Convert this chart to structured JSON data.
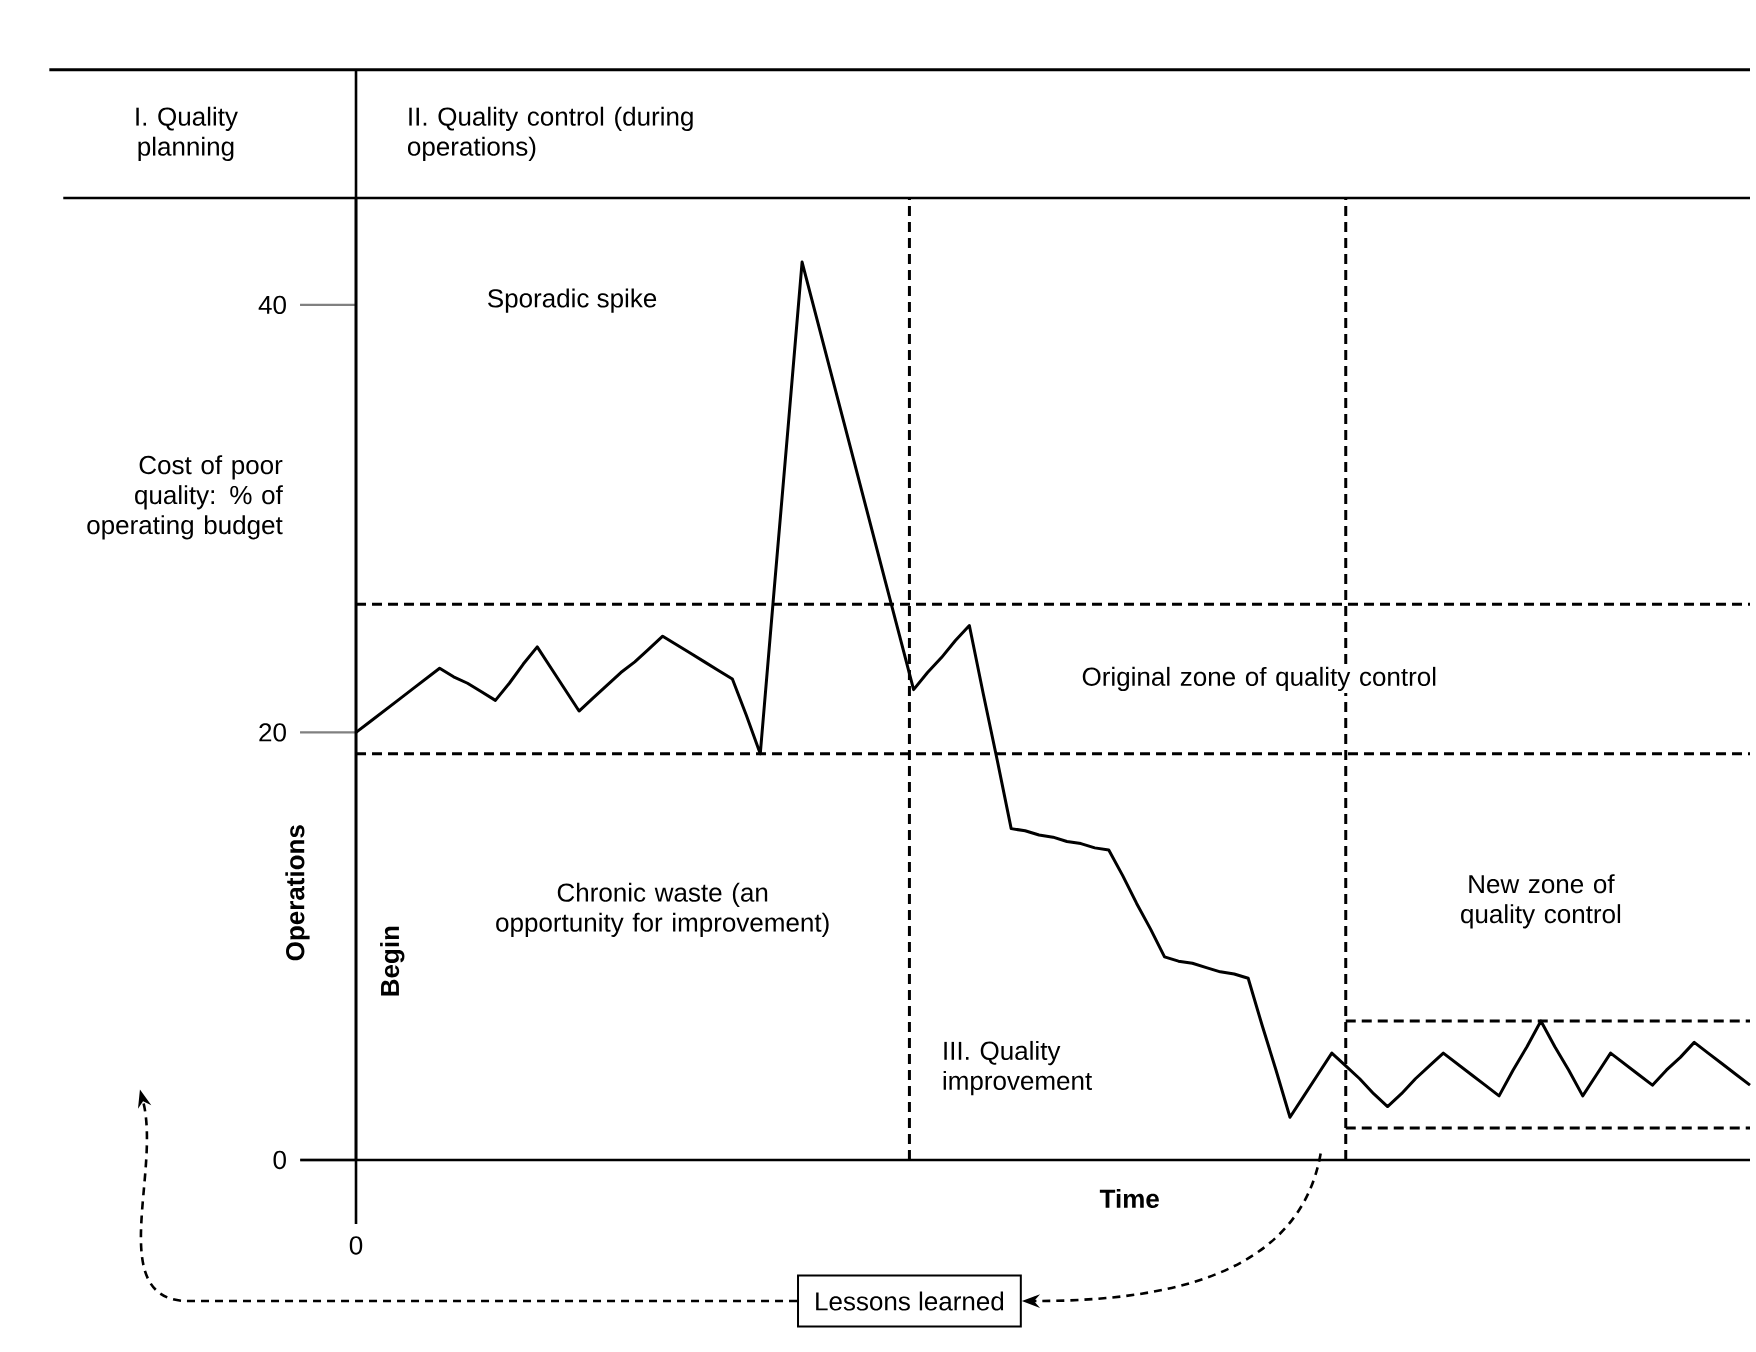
{
  "chart_data": {
    "type": "line",
    "xlabel": "Time",
    "ylabel": "Cost of poor quality: % of operating budget",
    "categories": [
      null,
      null,
      null,
      null,
      null,
      null,
      null,
      null,
      null,
      null,
      null,
      null,
      null,
      null,
      null,
      null,
      null,
      null,
      null,
      null,
      null,
      null,
      null,
      null,
      null,
      null,
      null,
      null,
      null,
      null,
      null,
      null,
      null,
      null,
      null,
      null,
      null,
      null,
      null,
      null,
      null,
      null,
      null,
      null,
      null,
      null,
      null,
      null,
      null,
      null,
      null,
      null,
      null,
      null,
      null,
      null,
      null,
      null,
      null,
      null,
      null,
      null,
      null,
      null,
      null,
      null,
      null,
      null,
      null,
      null,
      null,
      null,
      null,
      null,
      null,
      null,
      null,
      null,
      null,
      null,
      null,
      null,
      null,
      null,
      null,
      null,
      null,
      null,
      null,
      null,
      null,
      null,
      null,
      null,
      null,
      null,
      null,
      null,
      null,
      null,
      null
    ],
    "ylim": [
      0,
      45
    ],
    "yticks": [
      {
        "value": 0,
        "label": "0"
      },
      {
        "value": 20,
        "label": "20"
      },
      {
        "value": 40,
        "label": "40"
      }
    ],
    "series": [
      {
        "color": "#000000",
        "values": [
          20,
          20.5,
          21,
          21.5,
          22,
          22.5,
          23,
          22.6,
          22.3,
          21.9,
          21.5,
          22.3,
          23.2,
          24,
          23,
          22,
          21,
          21.6,
          22.2,
          22.8,
          23.3,
          23.9,
          24.5,
          24.1,
          23.7,
          23.3,
          22.9,
          22.5,
          20.8,
          19,
          26.7,
          34.3,
          42,
          39.5,
          37,
          34.5,
          32,
          29.5,
          27,
          24.5,
          22,
          22.8,
          23.5,
          24.3,
          25,
          21.8,
          18.7,
          15.5,
          15.4,
          15.2,
          15.1,
          14.9,
          14.8,
          14.6,
          14.5,
          13.3,
          12,
          10.8,
          9.5,
          9.3,
          9.2,
          9,
          8.8,
          8.7,
          8.5,
          6.3,
          4.2,
          2,
          3,
          4,
          5,
          4.4,
          3.8,
          3.1,
          2.5,
          3.1,
          3.8,
          4.4,
          5,
          4.5,
          4,
          3.5,
          3,
          4.2,
          5.3,
          6.5,
          5.3,
          4.2,
          3,
          4,
          5,
          4.5,
          4,
          3.5,
          4.2,
          4.8,
          5.5,
          5,
          4.5,
          4,
          3.5
        ]
      },
      {
        "color": "#000000",
        "line_style": "dashed",
        "values": [
          26,
          26,
          26,
          26,
          26,
          26,
          26,
          26,
          26,
          26,
          26,
          26,
          26,
          26,
          26,
          26,
          26,
          26,
          26,
          26,
          26,
          26,
          26,
          26,
          26,
          26,
          26,
          26,
          26,
          26,
          26,
          26,
          26,
          26,
          26,
          26,
          26,
          26,
          26,
          26,
          26,
          26,
          26,
          26,
          26,
          26,
          26,
          26,
          26,
          26,
          26,
          26,
          26,
          26,
          26,
          26,
          26,
          26,
          26,
          26,
          26,
          26,
          26,
          26,
          26,
          26,
          26,
          26,
          26,
          26,
          26,
          26,
          26,
          26,
          26,
          26,
          26,
          26,
          26,
          26,
          26,
          26,
          26,
          26,
          26,
          26,
          26,
          26,
          26,
          26,
          26,
          26,
          26,
          26,
          26,
          26,
          26,
          26,
          26,
          26,
          26
        ]
      },
      {
        "color": "#000000",
        "line_style": "dashed",
        "values": [
          19,
          19,
          19,
          19,
          19,
          19,
          19,
          19,
          19,
          19,
          19,
          19,
          19,
          19,
          19,
          19,
          19,
          19,
          19,
          19,
          19,
          19,
          19,
          19,
          19,
          19,
          19,
          19,
          19,
          19,
          19,
          19,
          19,
          19,
          19,
          19,
          19,
          19,
          19,
          19,
          19,
          19,
          19,
          19,
          19,
          19,
          19,
          19,
          19,
          19,
          19,
          19,
          19,
          19,
          19,
          19,
          19,
          19,
          19,
          19,
          19,
          19,
          19,
          19,
          19,
          19,
          19,
          19,
          19,
          19,
          19,
          19,
          19,
          19,
          19,
          19,
          19,
          19,
          19,
          19,
          19,
          19,
          19,
          19,
          19,
          19,
          19,
          19,
          19,
          19,
          19,
          19,
          19,
          19,
          19,
          19,
          19,
          19,
          19,
          19,
          19
        ]
      },
      {
        "color": "#000000",
        "line_style": "dashed",
        "values": [
          null,
          null,
          null,
          null,
          null,
          null,
          null,
          null,
          null,
          null,
          null,
          null,
          null,
          null,
          null,
          null,
          null,
          null,
          null,
          null,
          null,
          null,
          null,
          null,
          null,
          null,
          null,
          null,
          null,
          null,
          null,
          null,
          null,
          null,
          null,
          null,
          null,
          null,
          null,
          null,
          null,
          null,
          null,
          null,
          null,
          null,
          null,
          null,
          null,
          null,
          null,
          null,
          null,
          null,
          null,
          null,
          null,
          null,
          null,
          null,
          null,
          null,
          null,
          null,
          null,
          null,
          null,
          null,
          null,
          null,
          null,
          6.5,
          6.5,
          6.5,
          6.5,
          6.5,
          6.5,
          6.5,
          6.5,
          6.5,
          6.5,
          6.5,
          6.5,
          6.5,
          6.5,
          6.5,
          6.5,
          6.5,
          6.5,
          6.5,
          6.5,
          6.5,
          6.5,
          6.5,
          6.5,
          6.5,
          6.5,
          6.5,
          6.5,
          6.5,
          6.5
        ]
      },
      {
        "color": "#000000",
        "line_style": "dashed",
        "values": [
          null,
          null,
          null,
          null,
          null,
          null,
          null,
          null,
          null,
          null,
          null,
          null,
          null,
          null,
          null,
          null,
          null,
          null,
          null,
          null,
          null,
          null,
          null,
          null,
          null,
          null,
          null,
          null,
          null,
          null,
          null,
          null,
          null,
          null,
          null,
          null,
          null,
          null,
          null,
          null,
          null,
          null,
          null,
          null,
          null,
          null,
          null,
          null,
          null,
          null,
          null,
          null,
          null,
          null,
          null,
          null,
          null,
          null,
          null,
          null,
          null,
          null,
          null,
          null,
          null,
          null,
          null,
          null,
          null,
          null,
          null,
          1.5,
          1.5,
          1.5,
          1.5,
          1.5,
          1.5,
          1.5,
          1.5,
          1.5,
          1.5,
          1.5,
          1.5,
          1.5,
          1.5,
          1.5,
          1.5,
          1.5,
          1.5,
          1.5,
          1.5,
          1.5,
          1.5,
          1.5,
          1.5,
          1.5,
          1.5,
          1.5,
          1.5,
          1.5,
          1.5
        ]
      }
    ],
    "annotations": [
      "Sporadic spike",
      "Chronic waste (an opportunity for improvement)",
      "III. Quality improvement",
      "New zone of quality control",
      "Operations",
      "Begin",
      "I. Quality planning",
      "II. Quality control (during operations)",
      "Lessons learned",
      "0",
      "Original zone of quality control"
    ]
  }
}
